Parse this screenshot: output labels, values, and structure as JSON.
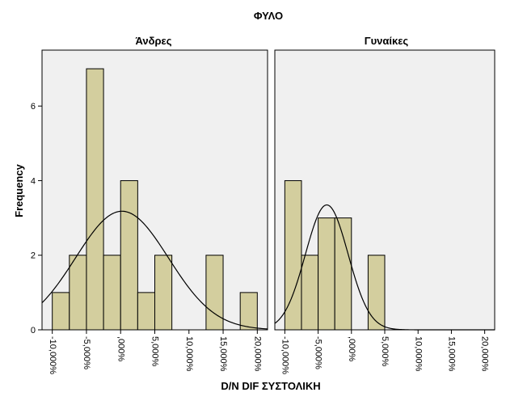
{
  "chart_data": {
    "type": "bar",
    "title": "ΦΥΛΟ",
    "xlabel": "D/N DIF ΣΥΣΤΟΛΙΚΗ",
    "ylabel": "Frequency",
    "ylim": [
      0,
      7.5
    ],
    "xlim": [
      -0.115,
      0.215
    ],
    "y_ticks": [
      0,
      2,
      4,
      6
    ],
    "x_ticks": [
      -0.1,
      -0.05,
      0.0,
      0.05,
      0.1,
      0.15,
      0.2
    ],
    "x_tick_labels": [
      "-10,000%",
      "-5,000%",
      ",000%",
      "5,000%",
      "10,000%",
      "15,000%",
      "20,000%"
    ],
    "bin_width": 0.025,
    "grid": false,
    "panels": [
      {
        "label": "Άνδρες",
        "bins": [
          {
            "x0": -0.1,
            "x1": -0.075,
            "count": 1
          },
          {
            "x0": -0.075,
            "x1": -0.05,
            "count": 2
          },
          {
            "x0": -0.05,
            "x1": -0.025,
            "count": 7
          },
          {
            "x0": -0.025,
            "x1": 0.0,
            "count": 2
          },
          {
            "x0": 0.0,
            "x1": 0.025,
            "count": 4
          },
          {
            "x0": 0.025,
            "x1": 0.05,
            "count": 1
          },
          {
            "x0": 0.05,
            "x1": 0.075,
            "count": 2
          },
          {
            "x0": 0.125,
            "x1": 0.15,
            "count": 2
          },
          {
            "x0": 0.175,
            "x1": 0.2,
            "count": 1
          }
        ],
        "normal_curve": {
          "mean": 0.002,
          "sd": 0.068,
          "peak": 3.18
        }
      },
      {
        "label": "Γυναίκες",
        "bins": [
          {
            "x0": -0.1,
            "x1": -0.075,
            "count": 4
          },
          {
            "x0": -0.075,
            "x1": -0.05,
            "count": 2
          },
          {
            "x0": -0.05,
            "x1": -0.025,
            "count": 3
          },
          {
            "x0": -0.025,
            "x1": 0.0,
            "count": 3
          },
          {
            "x0": 0.025,
            "x1": 0.05,
            "count": 2
          }
        ],
        "normal_curve": {
          "mean": -0.037,
          "sd": 0.032,
          "peak": 3.35
        }
      }
    ]
  }
}
